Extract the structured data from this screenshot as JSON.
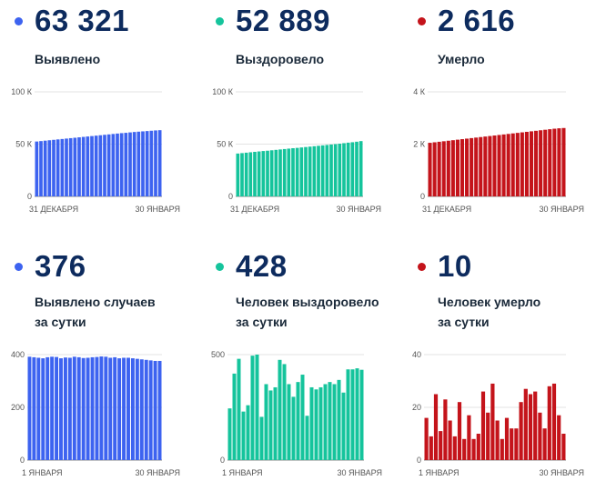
{
  "panels": [
    {
      "value": "63 321",
      "label": [
        "Выявлено"
      ],
      "color": "#3d63f0"
    },
    {
      "value": "52 889",
      "label": [
        "Выздоровело"
      ],
      "color": "#15c49c"
    },
    {
      "value": "2 616",
      "label": [
        "Умерло"
      ],
      "color": "#c4141b"
    },
    {
      "value": "376",
      "label": [
        "Выявлено случаев",
        "за сутки"
      ],
      "color": "#3d63f0"
    },
    {
      "value": "428",
      "label": [
        "Человек выздоровело",
        "за сутки"
      ],
      "color": "#15c49c"
    },
    {
      "value": "10",
      "label": [
        "Человек умерло",
        "за сутки"
      ],
      "color": "#c4141b"
    }
  ],
  "chart_data": [
    {
      "type": "bar",
      "color": "#3d63f0",
      "ylim": [
        0,
        100000
      ],
      "y_ticks": [
        0,
        50000,
        100000
      ],
      "y_tick_labels": [
        "0",
        "50 К",
        "100 К"
      ],
      "x_tick_labels": [
        "31 ДЕКАБРЯ",
        "30 ЯНВАРЯ"
      ],
      "values": [
        52500,
        52900,
        53300,
        53700,
        54100,
        54500,
        54900,
        55300,
        55700,
        56100,
        56500,
        56900,
        57300,
        57700,
        58100,
        58500,
        58900,
        59300,
        59700,
        60100,
        60500,
        60800,
        61200,
        61600,
        61900,
        62200,
        62500,
        62800,
        63100,
        63321
      ]
    },
    {
      "type": "bar",
      "color": "#15c49c",
      "ylim": [
        0,
        100000
      ],
      "y_ticks": [
        0,
        50000,
        100000
      ],
      "y_tick_labels": [
        "0",
        "50 К",
        "100 К"
      ],
      "x_tick_labels": [
        "31 ДЕКАБРЯ",
        "30 ЯНВАРЯ"
      ],
      "values": [
        41000,
        41400,
        41800,
        42200,
        42600,
        43000,
        43400,
        43700,
        44100,
        44500,
        44900,
        45300,
        45700,
        46100,
        46400,
        46800,
        47200,
        47600,
        48000,
        48400,
        48800,
        49200,
        49600,
        50000,
        50400,
        50900,
        51400,
        51800,
        52300,
        52889
      ]
    },
    {
      "type": "bar",
      "color": "#c4141b",
      "ylim": [
        0,
        4000
      ],
      "y_ticks": [
        0,
        2000,
        4000
      ],
      "y_tick_labels": [
        "0",
        "2 К",
        "4 К"
      ],
      "x_tick_labels": [
        "31 ДЕКАБРЯ",
        "30 ЯНВАРЯ"
      ],
      "values": [
        2050,
        2070,
        2090,
        2110,
        2130,
        2150,
        2170,
        2190,
        2210,
        2230,
        2250,
        2270,
        2290,
        2310,
        2330,
        2350,
        2370,
        2390,
        2410,
        2430,
        2450,
        2470,
        2490,
        2510,
        2530,
        2550,
        2570,
        2590,
        2605,
        2616
      ]
    },
    {
      "type": "bar",
      "color": "#3d63f0",
      "ylim": [
        0,
        400
      ],
      "y_ticks": [
        0,
        200,
        400
      ],
      "y_tick_labels": [
        "0",
        "200",
        "400"
      ],
      "x_tick_labels": [
        "1 ЯНВАРЯ",
        "30 ЯНВАРЯ"
      ],
      "values": [
        392,
        390,
        388,
        386,
        390,
        392,
        391,
        386,
        389,
        388,
        392,
        390,
        387,
        388,
        390,
        391,
        393,
        392,
        388,
        390,
        386,
        388,
        388,
        386,
        384,
        382,
        380,
        378,
        376,
        376
      ]
    },
    {
      "type": "bar",
      "color": "#15c49c",
      "ylim": [
        0,
        500
      ],
      "y_ticks": [
        0,
        500
      ],
      "y_tick_labels": [
        "0",
        "500"
      ],
      "x_tick_labels": [
        "1 ЯНВАРЯ",
        "30 ЯНВАРЯ"
      ],
      "values": [
        245,
        410,
        480,
        230,
        260,
        495,
        500,
        205,
        360,
        330,
        345,
        475,
        455,
        360,
        300,
        370,
        405,
        210,
        345,
        335,
        345,
        360,
        370,
        360,
        380,
        320,
        430,
        430,
        435,
        428
      ]
    },
    {
      "type": "bar",
      "color": "#c4141b",
      "ylim": [
        0,
        40
      ],
      "y_ticks": [
        0,
        20,
        40
      ],
      "y_tick_labels": [
        "0",
        "20",
        "40"
      ],
      "x_tick_labels": [
        "1 ЯНВАРЯ",
        "30 ЯНВАРЯ"
      ],
      "values": [
        16,
        9,
        25,
        11,
        23,
        15,
        9,
        22,
        8,
        17,
        8,
        10,
        26,
        18,
        29,
        15,
        8,
        16,
        12,
        12,
        22,
        27,
        25,
        26,
        18,
        12,
        28,
        29,
        17,
        10
      ]
    }
  ]
}
